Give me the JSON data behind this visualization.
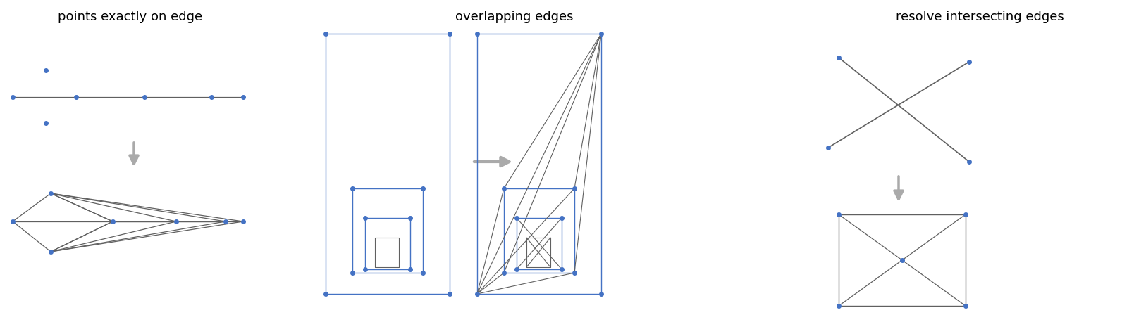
{
  "title1": "points exactly on edge",
  "title2": "overlapping edges",
  "title3": "resolve intersecting edges",
  "blue": "#4472C4",
  "gray_line": "#606060",
  "arrow_color": "#aaaaaa",
  "bg": "#ffffff"
}
